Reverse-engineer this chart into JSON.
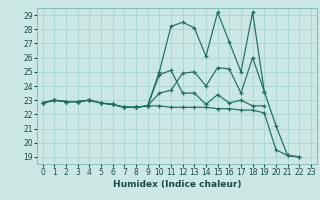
{
  "title": "",
  "xlabel": "Humidex (Indice chaleur)",
  "ylabel": "",
  "bg_color": "#cce8e4",
  "grid_color": "#aad4ce",
  "line_color": "#1a6e62",
  "x_ticks": [
    0,
    1,
    2,
    3,
    4,
    5,
    6,
    7,
    8,
    9,
    10,
    11,
    12,
    13,
    14,
    15,
    16,
    17,
    18,
    19,
    20,
    21,
    22,
    23
  ],
  "y_ticks": [
    19,
    20,
    21,
    22,
    23,
    24,
    25,
    26,
    27,
    28,
    29
  ],
  "xlim": [
    -0.5,
    23.5
  ],
  "ylim": [
    18.5,
    29.5
  ],
  "series": [
    [
      22.8,
      23.0,
      22.9,
      22.9,
      23.0,
      22.8,
      22.7,
      22.5,
      22.5,
      22.6,
      23.5,
      23.7,
      24.9,
      25.0,
      24.0,
      25.3,
      25.2,
      23.5,
      26.0,
      23.6,
      null,
      null,
      null,
      null
    ],
    [
      22.8,
      23.0,
      22.9,
      22.9,
      23.0,
      22.8,
      22.7,
      22.5,
      22.5,
      22.6,
      25.0,
      28.2,
      28.5,
      28.1,
      26.1,
      29.2,
      27.1,
      25.0,
      29.2,
      23.6,
      21.2,
      19.1,
      19.0,
      null
    ],
    [
      22.8,
      23.0,
      22.9,
      22.9,
      23.0,
      22.8,
      22.7,
      22.5,
      22.5,
      22.6,
      24.8,
      25.1,
      23.5,
      23.5,
      22.7,
      23.4,
      22.8,
      23.0,
      22.6,
      22.6,
      null,
      null,
      null,
      null
    ],
    [
      22.8,
      23.0,
      22.9,
      22.9,
      23.0,
      22.8,
      22.7,
      22.5,
      22.5,
      22.6,
      22.6,
      22.5,
      22.5,
      22.5,
      22.5,
      22.4,
      22.4,
      22.3,
      22.3,
      22.1,
      19.5,
      19.1,
      19.0,
      null
    ]
  ]
}
